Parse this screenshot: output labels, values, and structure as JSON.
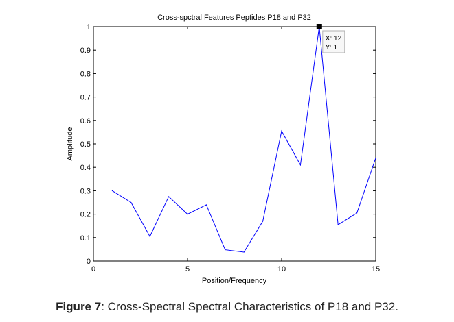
{
  "chart_data": {
    "type": "line",
    "title": "Cross-spctral Features  Peptides P18 and P32",
    "xlabel": "Position/Frequency",
    "ylabel": "Amplitude",
    "xlim": [
      0,
      15
    ],
    "ylim": [
      0,
      1
    ],
    "xticks": [
      "0",
      "5",
      "10",
      "15"
    ],
    "yticks": [
      "0",
      "0.1",
      "0.2",
      "0.3",
      "0.4",
      "0.5",
      "0.6",
      "0.7",
      "0.8",
      "0.9",
      "1"
    ],
    "grid": false,
    "series": [
      {
        "x": [
          1,
          2,
          3,
          4,
          5,
          6,
          7,
          8,
          9,
          10,
          11,
          12,
          13,
          14,
          15
        ],
        "y": [
          0.3,
          0.25,
          0.105,
          0.275,
          0.2,
          0.24,
          0.048,
          0.038,
          0.17,
          0.555,
          0.41,
          1.0,
          0.155,
          0.205,
          0.44
        ]
      }
    ],
    "datatip": {
      "x": 12,
      "y": 1,
      "x_label": "X: 12",
      "y_label": "Y: 1"
    },
    "line_color": "#0000ff"
  },
  "caption": {
    "label": "Figure 7",
    "text": ": Cross-Spectral Spectral Characteristics of P18 and P32."
  }
}
